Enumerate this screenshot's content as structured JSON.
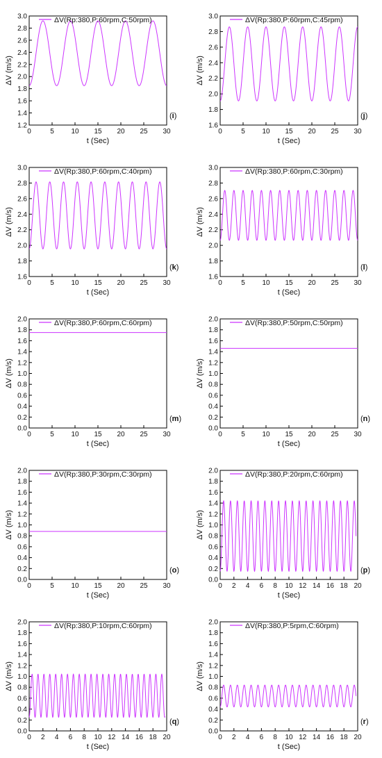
{
  "chart_data": [
    {
      "type": "line",
      "tag": "i",
      "xlabel": "t (Sec)",
      "ylabel": "ΔV (m/s)",
      "xlim": [
        0,
        30
      ],
      "xticks": [
        0,
        5,
        10,
        15,
        20,
        25,
        30
      ],
      "ylim": [
        1.2,
        3.0
      ],
      "yticks": [
        "1.2",
        "1.4",
        "1.6",
        "1.8",
        "2.0",
        "2.2",
        "2.4",
        "2.6",
        "2.8",
        "3.0"
      ],
      "series": [
        {
          "name": "ΔV(Rp:380,P:60rpm,C:50rpm)",
          "color": "#cc33ff",
          "model": "sine",
          "mean": 2.385,
          "amplitude": 0.535,
          "period": 6.0,
          "phase_deg": -90,
          "x_start": 0,
          "x_end": 30
        }
      ]
    },
    {
      "type": "line",
      "tag": "j",
      "xlabel": "t (Sec)",
      "ylabel": "ΔV (m/s)",
      "xlim": [
        0,
        30
      ],
      "xticks": [
        0,
        5,
        10,
        15,
        20,
        25,
        30
      ],
      "ylim": [
        1.6,
        3.0
      ],
      "yticks": [
        "1.6",
        "1.8",
        "2.0",
        "2.2",
        "2.4",
        "2.6",
        "2.8",
        "3.0"
      ],
      "series": [
        {
          "name": "ΔV(Rp:380,P:60rpm,C:45rpm)",
          "color": "#cc33ff",
          "model": "sine",
          "mean": 2.385,
          "amplitude": 0.475,
          "period": 4.0,
          "phase_deg": -90,
          "x_start": 0,
          "x_end": 30
        }
      ]
    },
    {
      "type": "line",
      "tag": "k",
      "xlabel": "t (Sec)",
      "ylabel": "ΔV (m/s)",
      "xlim": [
        0,
        30
      ],
      "xticks": [
        0,
        5,
        10,
        15,
        20,
        25,
        30
      ],
      "ylim": [
        1.6,
        3.0
      ],
      "yticks": [
        "1.6",
        "1.8",
        "2.0",
        "2.2",
        "2.4",
        "2.6",
        "2.8",
        "3.0"
      ],
      "series": [
        {
          "name": "ΔV(Rp:380,P:60rpm,C:40rpm)",
          "color": "#cc33ff",
          "model": "sine",
          "mean": 2.385,
          "amplitude": 0.43,
          "period": 3.0,
          "phase_deg": -90,
          "x_start": 0,
          "x_end": 30
        }
      ]
    },
    {
      "type": "line",
      "tag": "l",
      "xlabel": "t (Sec)",
      "ylabel": "ΔV (m/s)",
      "xlim": [
        0,
        30
      ],
      "xticks": [
        0,
        5,
        10,
        15,
        20,
        25,
        30
      ],
      "ylim": [
        1.6,
        3.0
      ],
      "yticks": [
        "1.6",
        "1.8",
        "2.0",
        "2.2",
        "2.4",
        "2.6",
        "2.8",
        "3.0"
      ],
      "series": [
        {
          "name": "ΔV(Rp:380,P:60rpm,C:30rpm)",
          "color": "#cc33ff",
          "model": "sine",
          "mean": 2.385,
          "amplitude": 0.32,
          "period": 2.0,
          "phase_deg": -90,
          "x_start": 0,
          "x_end": 30
        }
      ]
    },
    {
      "type": "line",
      "tag": "m",
      "xlabel": "t (Sec)",
      "ylabel": "ΔV (m/s)",
      "xlim": [
        0,
        30
      ],
      "xticks": [
        0,
        5,
        10,
        15,
        20,
        25,
        30
      ],
      "ylim": [
        0.0,
        2.0
      ],
      "yticks": [
        "0.0",
        "0.2",
        "0.4",
        "0.6",
        "0.8",
        "1.0",
        "1.2",
        "1.4",
        "1.6",
        "1.8",
        "2.0"
      ],
      "series": [
        {
          "name": "ΔV(Rp:380,P:60rpm,C:60rpm)",
          "color": "#cc33ff",
          "model": "constant",
          "value": 1.75,
          "x_start": 0,
          "x_end": 30
        }
      ]
    },
    {
      "type": "line",
      "tag": "n",
      "xlabel": "t (Sec)",
      "ylabel": "ΔV (m/s)",
      "xlim": [
        0,
        30
      ],
      "xticks": [
        0,
        5,
        10,
        15,
        20,
        25,
        30
      ],
      "ylim": [
        0.0,
        2.0
      ],
      "yticks": [
        "0.0",
        "0.2",
        "0.4",
        "0.6",
        "0.8",
        "1.0",
        "1.2",
        "1.4",
        "1.6",
        "1.8",
        "2.0"
      ],
      "series": [
        {
          "name": "ΔV(Rp:380,P:50rpm,C:50rpm)",
          "color": "#cc33ff",
          "model": "constant",
          "value": 1.46,
          "x_start": 0,
          "x_end": 30
        }
      ]
    },
    {
      "type": "line",
      "tag": "o",
      "xlabel": "t (Sec)",
      "ylabel": "ΔV (m/s)",
      "xlim": [
        0,
        30
      ],
      "xticks": [
        0,
        5,
        10,
        15,
        20,
        25,
        30
      ],
      "ylim": [
        0.0,
        2.0
      ],
      "yticks": [
        "0.0",
        "0.2",
        "0.4",
        "0.6",
        "0.8",
        "1.0",
        "1.2",
        "1.4",
        "1.6",
        "1.8",
        "2.0"
      ],
      "series": [
        {
          "name": "ΔV(Rp:380,P:30rpm,C:30rpm)",
          "color": "#cc33ff",
          "model": "constant",
          "value": 0.88,
          "x_start": 0,
          "x_end": 30
        }
      ]
    },
    {
      "type": "line",
      "tag": "p",
      "xlabel": "t (Sec)",
      "ylabel": "ΔV (m/s)",
      "xlim": [
        0,
        20
      ],
      "xticks": [
        0,
        2,
        4,
        6,
        8,
        10,
        12,
        14,
        16,
        18,
        20
      ],
      "ylim": [
        0.0,
        2.0
      ],
      "yticks": [
        "0.0",
        "0.2",
        "0.4",
        "0.6",
        "0.8",
        "1.0",
        "1.2",
        "1.4",
        "1.6",
        "1.8",
        "2.0"
      ],
      "series": [
        {
          "name": "ΔV(Rp:380,P:20rpm,C:60rpm)",
          "color": "#cc33ff",
          "model": "sine",
          "mean": 0.795,
          "amplitude": 0.645,
          "period": 1.0,
          "phase_deg": -90,
          "x_start": 0,
          "x_end": 19.75
        }
      ]
    },
    {
      "type": "line",
      "tag": "q",
      "xlabel": "t (Sec)",
      "ylabel": "ΔV (m/s)",
      "xlim": [
        0,
        20
      ],
      "xticks": [
        0,
        2,
        4,
        6,
        8,
        10,
        12,
        14,
        16,
        18,
        20
      ],
      "ylim": [
        0.0,
        2.0
      ],
      "yticks": [
        "0.0",
        "0.2",
        "0.4",
        "0.6",
        "0.8",
        "1.0",
        "1.2",
        "1.4",
        "1.6",
        "1.8",
        "2.0"
      ],
      "series": [
        {
          "name": "ΔV(Rp:380,P:10rpm,C:60rpm)",
          "color": "#cc33ff",
          "model": "sine",
          "mean": 0.645,
          "amplitude": 0.395,
          "period": 0.8571,
          "phase_deg": -90,
          "x_start": 0,
          "x_end": 19.75
        }
      ]
    },
    {
      "type": "line",
      "tag": "r",
      "xlabel": "t (Sec)",
      "ylabel": "ΔV (m/s)",
      "xlim": [
        0,
        20
      ],
      "xticks": [
        0,
        2,
        4,
        6,
        8,
        10,
        12,
        14,
        16,
        18,
        20
      ],
      "ylim": [
        0.0,
        2.0
      ],
      "yticks": [
        "0.0",
        "0.2",
        "0.4",
        "0.6",
        "0.8",
        "1.0",
        "1.2",
        "1.4",
        "1.6",
        "1.8",
        "2.0"
      ],
      "series": [
        {
          "name": "ΔV(Rp:380,P:5rpm,C:60rpm)",
          "color": "#cc33ff",
          "model": "sine",
          "mean": 0.64,
          "amplitude": 0.2,
          "period": 1.0,
          "phase_deg": -90,
          "x_start": 0,
          "x_end": 19.75
        }
      ]
    }
  ]
}
